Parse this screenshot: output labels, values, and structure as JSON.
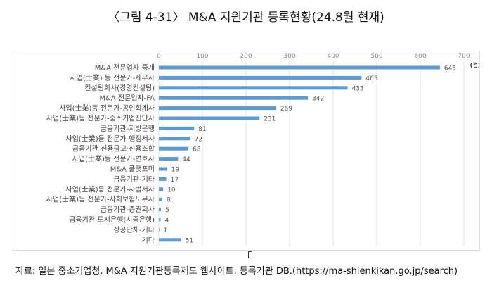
{
  "title": "〈그림 4-31〉 M&A 지원기관 등록현황(24.8월 현재)",
  "source": "자료: 일본 중소기업청. M&A 지원기관등록제도 웹사이트. 등록기관 DB.(https://ma-shienkikan.go.jp/search)",
  "chart_data": {
    "type": "bar",
    "orientation": "horizontal",
    "categories": [
      "M&A 전문업자-중개",
      "사업(士業) 등 전문가-세무사",
      "컨설팅회사(경영컨설팅)",
      "M&A 전문업자-FA",
      "사업(士業)등 전문가-공인회계사",
      "사업(士業)등 전문가-중소기업진단사",
      "금융기관-지방은행",
      "사업(士業)등 전문가-행정서사",
      "금융기관-신용금고·신용조합",
      "사업(士業)등 전문가-변호사",
      "M&A 플랫포머",
      "금융기관-기타",
      "사업(士業)등 전문가-사법서사",
      "사업(士業)등 전문가-사회보험노무사",
      "금융기관-증권회사",
      "금융기관-도시은행(시중은행)",
      "상공단체-기타",
      "기타"
    ],
    "values": [
      645,
      465,
      433,
      342,
      269,
      231,
      81,
      72,
      68,
      44,
      19,
      17,
      10,
      8,
      5,
      4,
      1,
      51
    ],
    "xlim": [
      0,
      700
    ],
    "ticks": [
      "0",
      "100",
      "200",
      "300",
      "400",
      "500",
      "600",
      "700"
    ],
    "unit": "(건)",
    "grid": true,
    "bar_color": "#5B9BD5"
  }
}
